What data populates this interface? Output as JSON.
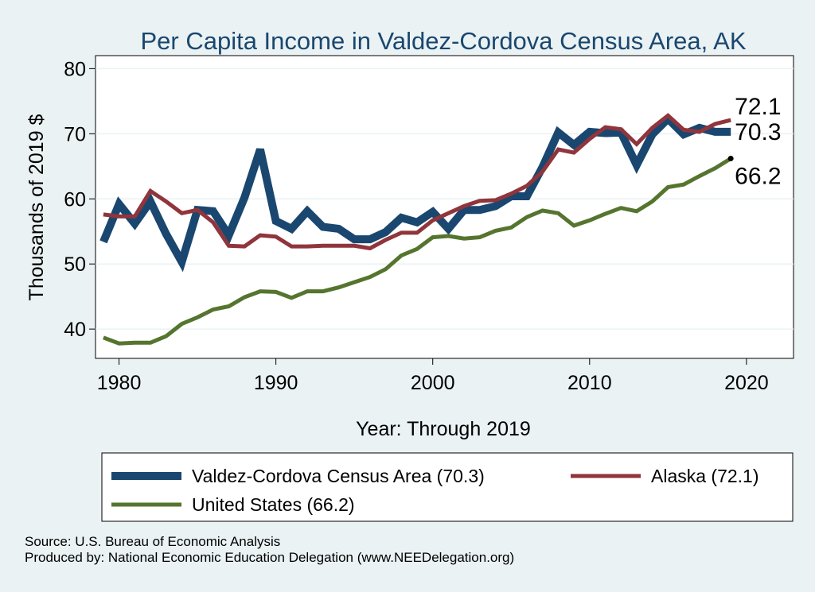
{
  "chart_data": {
    "type": "line",
    "title": "Per Capita Income in Valdez-Cordova Census Area, AK",
    "xlabel": "Year: Through 2019",
    "ylabel": "Thousands of 2019 $",
    "xlim": [
      1978.5,
      2023
    ],
    "ylim": [
      35.5,
      82
    ],
    "x_ticks": [
      1980,
      1990,
      2000,
      2010,
      2020
    ],
    "y_ticks": [
      40,
      50,
      60,
      70,
      80
    ],
    "grid": "horizontal",
    "legend_position": "bottom",
    "x": [
      1979,
      1980,
      1981,
      1982,
      1983,
      1984,
      1985,
      1986,
      1987,
      1988,
      1989,
      1990,
      1991,
      1992,
      1993,
      1994,
      1995,
      1996,
      1997,
      1998,
      1999,
      2000,
      2001,
      2002,
      2003,
      2004,
      2005,
      2006,
      2007,
      2008,
      2009,
      2010,
      2011,
      2012,
      2013,
      2014,
      2015,
      2016,
      2017,
      2018,
      2019
    ],
    "series": [
      {
        "name": "Valdez-Cordova Census Area (70.3)",
        "color": "#1a476f",
        "values": [
          53.4,
          59.2,
          56.2,
          59.6,
          54.6,
          50.3,
          58.3,
          58.1,
          54.4,
          60.2,
          67.6,
          56.6,
          55.4,
          58.1,
          55.7,
          55.4,
          53.8,
          53.8,
          54.9,
          57.1,
          56.4,
          58.0,
          55.4,
          58.3,
          58.3,
          58.9,
          60.4,
          60.4,
          64.9,
          70.2,
          68.3,
          70.3,
          70.1,
          70.2,
          65.2,
          69.9,
          72.3,
          69.9,
          70.9,
          70.3,
          70.3
        ],
        "end_label": "70.3"
      },
      {
        "name": "Alaska (72.1)",
        "color": "#90353b",
        "values": [
          57.6,
          57.3,
          57.3,
          61.2,
          59.6,
          57.8,
          58.3,
          56.4,
          52.8,
          52.7,
          54.4,
          54.2,
          52.7,
          52.7,
          52.8,
          52.8,
          52.8,
          52.4,
          53.7,
          54.8,
          54.8,
          56.7,
          57.8,
          58.9,
          59.7,
          59.8,
          60.8,
          62.0,
          64.2,
          67.6,
          67.1,
          69.2,
          71.0,
          70.7,
          68.4,
          70.9,
          72.8,
          70.6,
          70.3,
          71.5,
          72.1
        ],
        "end_label": "72.1"
      },
      {
        "name": "United States (66.2)",
        "color": "#55752f",
        "values": [
          38.7,
          37.8,
          37.9,
          37.9,
          38.9,
          40.8,
          41.8,
          43.0,
          43.5,
          44.9,
          45.8,
          45.7,
          44.8,
          45.8,
          45.8,
          46.4,
          47.2,
          48.0,
          49.2,
          51.3,
          52.3,
          54.1,
          54.3,
          53.9,
          54.1,
          55.1,
          55.6,
          57.2,
          58.2,
          57.8,
          55.9,
          56.7,
          57.7,
          58.6,
          58.1,
          59.6,
          61.8,
          62.2,
          63.5,
          64.7,
          66.2
        ],
        "end_label": "66.2"
      }
    ]
  },
  "source_note": "Source: U.S. Bureau of Economic Analysis",
  "produced_note": "Produced by: National Economic Education Delegation (www.NEEDelegation.org)"
}
